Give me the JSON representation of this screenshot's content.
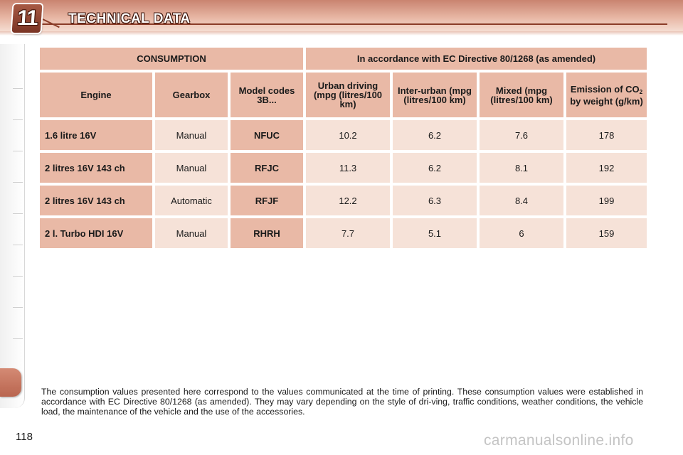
{
  "chapter_number": "11",
  "page_title": "TECHNICAL DATA",
  "table": {
    "group_headers": {
      "consumption": "CONSUMPTION",
      "directive": "In accordance with EC Directive 80/1268 (as amended)"
    },
    "columns": {
      "engine": "Engine",
      "gearbox": "Gearbox",
      "model_codes": "Model codes 3B...",
      "urban": "Urban driving (mpg (litres/100 km)",
      "inter_urban": "Inter-urban (mpg (litres/100 km)",
      "mixed": "Mixed (mpg (litres/100 km)",
      "emission_prefix": "Emission of CO",
      "emission_sub": "2",
      "emission_suffix": " by weight (g/km)"
    },
    "rows": [
      {
        "engine": "1.6 litre 16V",
        "gearbox": "Manual",
        "code": "NFUC",
        "urban": "10.2",
        "inter_urban": "6.2",
        "mixed": "7.6",
        "co2": "178"
      },
      {
        "engine": "2 litres 16V 143 ch",
        "gearbox": "Manual",
        "code": "RFJC",
        "urban": "11.3",
        "inter_urban": "6.2",
        "mixed": "8.1",
        "co2": "192"
      },
      {
        "engine": "2 litres 16V 143 ch",
        "gearbox": "Automatic",
        "code": "RFJF",
        "urban": "12.2",
        "inter_urban": "6.3",
        "mixed": "8.4",
        "co2": "199"
      },
      {
        "engine": "2 l. Turbo HDI 16V",
        "gearbox": "Manual",
        "code": "RHRH",
        "urban": "7.7",
        "inter_urban": "5.1",
        "mixed": "6",
        "co2": "159"
      }
    ]
  },
  "note": "The consumption values presented here correspond to the values communicated at the time of printing. These consumption values were established in accordance with EC Directive 80/1268 (as amended). They may vary depending on the style of dri-ving, traffic conditions, weather conditions, the vehicle load, the maintenance of the vehicle and the use of the accessories.",
  "page_number": "118",
  "watermark": "carmanualsonline.info",
  "colors": {
    "header_accent": "#c98470",
    "cell_dark": "#e9b9a6",
    "cell_light": "#f6e2d8"
  }
}
